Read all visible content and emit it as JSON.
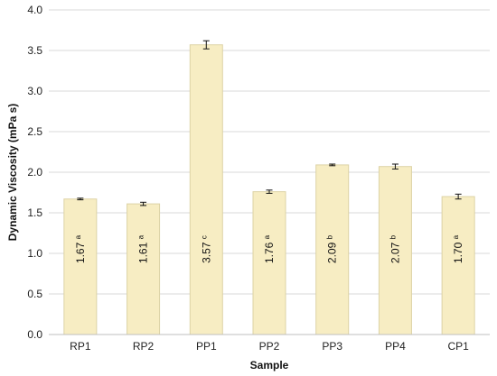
{
  "chart_data": {
    "type": "bar",
    "xlabel": "Sample",
    "ylabel": "Dynamic Viscosity (mPa s)",
    "ylim": [
      0,
      4.0
    ],
    "yticks": [
      0.0,
      0.5,
      1.0,
      1.5,
      2.0,
      2.5,
      3.0,
      3.5,
      4.0
    ],
    "ytick_labels": [
      "0.0",
      "0.5",
      "1.0",
      "1.5",
      "2.0",
      "2.5",
      "3.0",
      "3.5",
      "4.0"
    ],
    "grid": true,
    "categories": [
      "RP1",
      "RP2",
      "PP1",
      "PP2",
      "PP3",
      "PP4",
      "CP1"
    ],
    "values": [
      1.67,
      1.61,
      3.57,
      1.76,
      2.09,
      2.07,
      1.7
    ],
    "errors": [
      0.01,
      0.02,
      0.05,
      0.02,
      0.01,
      0.03,
      0.03
    ],
    "value_labels": [
      "1.67",
      "1.61",
      "3.57",
      "1.76",
      "2.09",
      "2.07",
      "1.70"
    ],
    "significance": [
      "a",
      "a",
      "c",
      "a",
      "b",
      "b",
      "a"
    ],
    "bar_color": "#f7edc3",
    "bar_edge_color": "#ddd3a6"
  }
}
